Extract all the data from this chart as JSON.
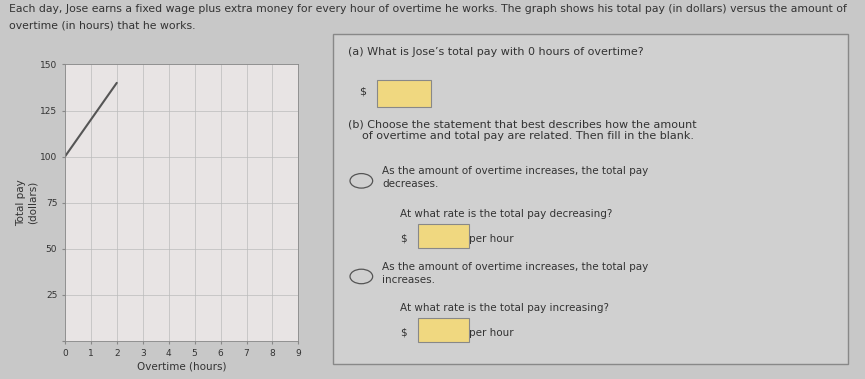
{
  "title_line1": "Each day, Jose earns a fixed wage plus extra money for every hour of overtime he works. The graph shows his total pay (in dollars) versus the amount of",
  "title_line2": "overtime (in hours) that he works.",
  "ylabel": "Total pay\n(dollars)",
  "xlabel": "Overtime (hours)",
  "xlim": [
    0,
    9
  ],
  "ylim": [
    0,
    150
  ],
  "ytick_vals": [
    0,
    25,
    50,
    75,
    100,
    125,
    150
  ],
  "ytick_labels": [
    "",
    "25",
    "50",
    "75",
    "100",
    "125",
    "150"
  ],
  "xtick_vals": [
    0,
    1,
    2,
    3,
    4,
    5,
    6,
    7,
    8,
    9
  ],
  "xtick_labels": [
    "0",
    "1",
    "2",
    "3",
    "4",
    "5",
    "6",
    "7",
    "8",
    "9"
  ],
  "line_x": [
    0,
    2
  ],
  "line_y": [
    100,
    140
  ],
  "line_color": "#555555",
  "bg_color": "#c8c8c8",
  "graph_bg": "#e8e4e4",
  "panel_bg": "#d0d0d0",
  "grid_color": "#bbbbbb",
  "title_fontsize": 7.8,
  "axis_label_fontsize": 7.5,
  "tick_fontsize": 6.5,
  "question_title_a": "(a) What is Jose’s total pay with 0 hours of overtime?",
  "question_title_b": "(b) Choose the statement that best describes how the amount\n    of overtime and total pay are related. Then fill in the blank.",
  "option1_text": "As the amount of overtime increases, the total pay\ndecreases.",
  "option1_sub": "At what rate is the total pay decreasing?",
  "option2_text": "As the amount of overtime increases, the total pay\nincreases.",
  "option2_sub": "At what rate is the total pay increasing?",
  "panel_border_color": "#888888",
  "text_color": "#333333",
  "input_box_color": "#f0d880",
  "input_border_color": "#888888"
}
